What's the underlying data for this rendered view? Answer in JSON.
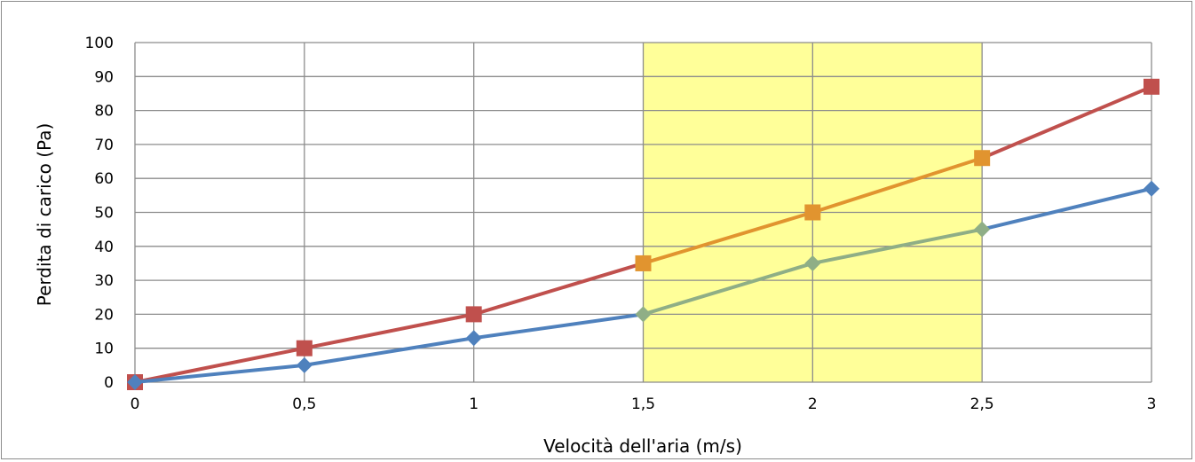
{
  "chart_data": {
    "type": "line",
    "title": "",
    "xlabel": "Velocità dell'aria (m/s)",
    "ylabel": "Perdita di carico (Pa)",
    "x": [
      0,
      0.5,
      1,
      1.5,
      2,
      2.5,
      3
    ],
    "x_tick_labels": [
      "0",
      "0,5",
      "1",
      "1,5",
      "2",
      "2,5",
      "3"
    ],
    "y_tick_labels": [
      "0",
      "10",
      "20",
      "30",
      "40",
      "50",
      "60",
      "70",
      "80",
      "90",
      "100"
    ],
    "xlim": [
      0,
      3
    ],
    "ylim": [
      0,
      100
    ],
    "grid": true,
    "legend": "none",
    "highlight_band": {
      "x_from": 1.5,
      "x_to": 2.5,
      "color": "#ffff99"
    },
    "series": [
      {
        "values": [
          0,
          10,
          20,
          35,
          50,
          66,
          87
        ],
        "color": "#c0504d",
        "color_in_band": "#e1942f",
        "marker": "square"
      },
      {
        "values": [
          0,
          5,
          13,
          20,
          35,
          45,
          57
        ],
        "color": "#4f81bd",
        "color_in_band": "#8fae86",
        "marker": "diamond"
      }
    ]
  }
}
